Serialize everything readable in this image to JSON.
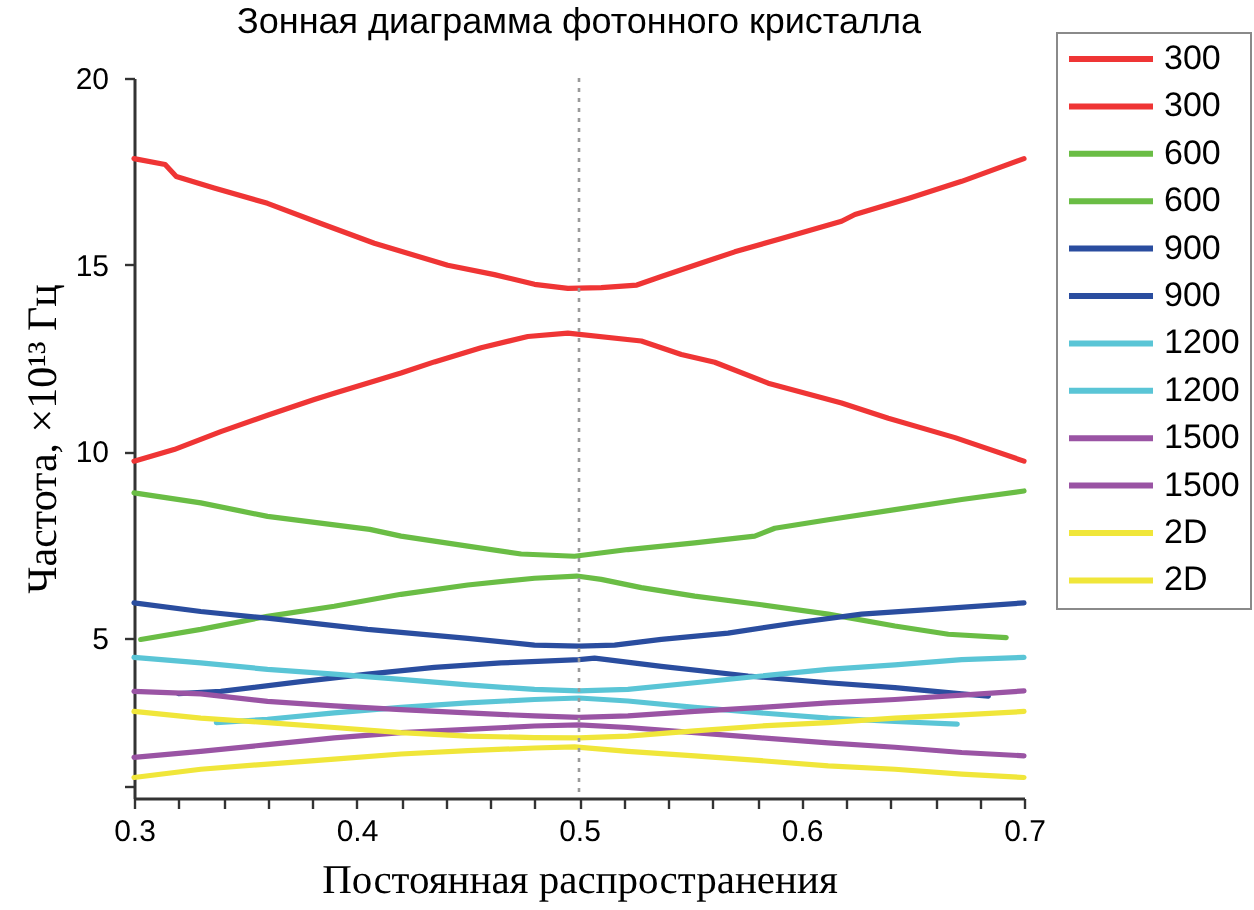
{
  "chart_data": {
    "type": "line",
    "title": "Зонная диаграмма фотонного кристалла",
    "xlabel": "Постоянная распространения",
    "ylabel": "Частота, ×10¹³ Гц",
    "xlim": [
      0.3,
      0.7
    ],
    "ylim": [
      0.7,
      20
    ],
    "xticks": [
      0.3,
      {
        "value": 0.32,
        "label": null
      },
      {
        "value": 0.34,
        "label": null
      },
      {
        "value": 0.36,
        "label": null
      },
      {
        "value": 0.38,
        "label": null
      },
      0.4,
      {
        "value": 0.42,
        "label": null
      },
      {
        "value": 0.44,
        "label": null
      },
      {
        "value": 0.46,
        "label": null
      },
      {
        "value": 0.48,
        "label": null
      },
      0.5,
      {
        "value": 0.52,
        "label": null
      },
      {
        "value": 0.54,
        "label": null
      },
      {
        "value": 0.56,
        "label": null
      },
      {
        "value": 0.58,
        "label": null
      },
      0.6,
      {
        "value": 0.62,
        "label": null
      },
      {
        "value": 0.64,
        "label": null
      },
      {
        "value": 0.66,
        "label": null
      },
      {
        "value": 0.68,
        "label": null
      },
      0.7
    ],
    "yticks": [
      {
        "value": 1,
        "label": null
      },
      5,
      10,
      15,
      20
    ],
    "grid": false,
    "legend": "right",
    "ref_lines": [
      {
        "axis": "x",
        "value": 0.5,
        "color": "#9a9a9a",
        "line_style": "dotted"
      }
    ],
    "series": [
      {
        "name": "300",
        "color": "#ef3535",
        "x": [
          0.3,
          0.314,
          0.319,
          0.336,
          0.36,
          0.384,
          0.408,
          0.441,
          0.462,
          0.48,
          0.495,
          0.51,
          0.526,
          0.537,
          0.555,
          0.57,
          0.591,
          0.618,
          0.624,
          0.648,
          0.672,
          0.7
        ],
        "values": [
          17.84,
          17.68,
          17.36,
          17.05,
          16.64,
          16.1,
          15.57,
          14.98,
          14.73,
          14.47,
          14.36,
          14.38,
          14.45,
          14.68,
          15.04,
          15.34,
          15.7,
          16.16,
          16.34,
          16.77,
          17.23,
          17.84
        ]
      },
      {
        "name": "300",
        "color": "#ef3535",
        "x": [
          0.3,
          0.318,
          0.339,
          0.36,
          0.381,
          0.39,
          0.42,
          0.435,
          0.456,
          0.477,
          0.495,
          0.528,
          0.546,
          0.561,
          0.585,
          0.618,
          0.639,
          0.669,
          0.7
        ],
        "values": [
          9.73,
          10.04,
          10.52,
          10.96,
          11.38,
          11.55,
          12.09,
          12.39,
          12.77,
          13.07,
          13.16,
          12.95,
          12.59,
          12.38,
          11.82,
          11.29,
          10.88,
          10.36,
          9.73
        ]
      },
      {
        "name": "600",
        "color": "#6abd45",
        "x": [
          0.3,
          0.33,
          0.36,
          0.39,
          0.406,
          0.42,
          0.45,
          0.474,
          0.498,
          0.522,
          0.552,
          0.579,
          0.588,
          0.612,
          0.642,
          0.672,
          0.7
        ],
        "values": [
          8.88,
          8.61,
          8.25,
          8.02,
          7.9,
          7.72,
          7.45,
          7.24,
          7.18,
          7.36,
          7.54,
          7.72,
          7.93,
          8.16,
          8.43,
          8.7,
          8.93
        ]
      },
      {
        "name": "600",
        "color": "#6abd45",
        "x": [
          0.303,
          0.33,
          0.36,
          0.39,
          0.42,
          0.45,
          0.48,
          0.499,
          0.51,
          0.528,
          0.552,
          0.582,
          0.612,
          0.642,
          0.666,
          0.692
        ],
        "values": [
          4.95,
          5.22,
          5.57,
          5.84,
          6.16,
          6.41,
          6.59,
          6.65,
          6.56,
          6.34,
          6.11,
          5.88,
          5.63,
          5.31,
          5.09,
          5.0
        ]
      },
      {
        "name": "900",
        "color": "#2a4d9f",
        "x": [
          0.3,
          0.33,
          0.36,
          0.405,
          0.45,
          0.48,
          0.5,
          0.516,
          0.537,
          0.567,
          0.597,
          0.627,
          0.657,
          0.7
        ],
        "values": [
          5.93,
          5.7,
          5.52,
          5.22,
          4.98,
          4.8,
          4.77,
          4.8,
          4.95,
          5.12,
          5.39,
          5.63,
          5.75,
          5.93
        ]
      },
      {
        "name": "900",
        "color": "#2a4d9f",
        "x": [
          0.32,
          0.339,
          0.375,
          0.405,
          0.435,
          0.465,
          0.5,
          0.507,
          0.537,
          0.576,
          0.612,
          0.642,
          0.672,
          0.684
        ],
        "values": [
          3.5,
          3.56,
          3.82,
          4.02,
          4.2,
          4.32,
          4.41,
          4.45,
          4.23,
          3.97,
          3.79,
          3.66,
          3.49,
          3.43
        ]
      },
      {
        "name": "1200",
        "color": "#5ac5d6",
        "x": [
          0.3,
          0.33,
          0.36,
          0.39,
          0.42,
          0.45,
          0.48,
          0.5,
          0.522,
          0.552,
          0.582,
          0.612,
          0.642,
          0.672,
          0.7
        ],
        "values": [
          4.47,
          4.32,
          4.15,
          4.02,
          3.88,
          3.73,
          3.61,
          3.57,
          3.61,
          3.79,
          3.97,
          4.15,
          4.27,
          4.41,
          4.47
        ]
      },
      {
        "name": "1200",
        "color": "#5ac5d6",
        "x": [
          0.337,
          0.36,
          0.39,
          0.42,
          0.45,
          0.48,
          0.5,
          0.522,
          0.552,
          0.582,
          0.612,
          0.642,
          0.67
        ],
        "values": [
          2.72,
          2.81,
          2.98,
          3.13,
          3.25,
          3.34,
          3.38,
          3.3,
          3.13,
          2.98,
          2.84,
          2.75,
          2.68
        ]
      },
      {
        "name": "1500",
        "color": "#9a54a4",
        "x": [
          0.3,
          0.33,
          0.36,
          0.39,
          0.42,
          0.45,
          0.48,
          0.5,
          0.522,
          0.552,
          0.582,
          0.612,
          0.642,
          0.672,
          0.7
        ],
        "values": [
          3.56,
          3.49,
          3.29,
          3.17,
          3.07,
          2.98,
          2.9,
          2.86,
          2.9,
          3.02,
          3.13,
          3.25,
          3.34,
          3.46,
          3.57
        ]
      },
      {
        "name": "1500",
        "color": "#9a54a4",
        "x": [
          0.3,
          0.33,
          0.36,
          0.39,
          0.42,
          0.45,
          0.48,
          0.5,
          0.522,
          0.552,
          0.582,
          0.612,
          0.642,
          0.672,
          0.7
        ],
        "values": [
          1.79,
          1.95,
          2.13,
          2.31,
          2.45,
          2.54,
          2.63,
          2.66,
          2.59,
          2.45,
          2.31,
          2.18,
          2.06,
          1.92,
          1.83
        ]
      },
      {
        "name": "2D",
        "color": "#f0e63a",
        "x": [
          0.3,
          0.33,
          0.36,
          0.39,
          0.42,
          0.45,
          0.48,
          0.5,
          0.522,
          0.552,
          0.582,
          0.612,
          0.642,
          0.672,
          0.7
        ],
        "values": [
          3.02,
          2.84,
          2.72,
          2.59,
          2.45,
          2.36,
          2.32,
          2.31,
          2.36,
          2.5,
          2.63,
          2.72,
          2.84,
          2.93,
          3.02
        ]
      },
      {
        "name": "2D",
        "color": "#f0e63a",
        "x": [
          0.3,
          0.33,
          0.36,
          0.39,
          0.42,
          0.45,
          0.48,
          0.498,
          0.522,
          0.552,
          0.582,
          0.612,
          0.642,
          0.672,
          0.7
        ],
        "values": [
          1.25,
          1.47,
          1.61,
          1.74,
          1.88,
          1.97,
          2.04,
          2.07,
          1.95,
          1.83,
          1.7,
          1.56,
          1.47,
          1.34,
          1.25
        ]
      }
    ]
  }
}
